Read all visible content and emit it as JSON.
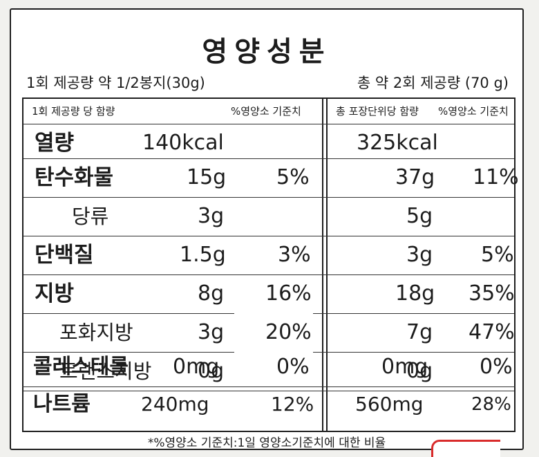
{
  "title": "영양성분",
  "serving_size": "1회 제공량 약 1/2봉지(30g)",
  "total_servings": "총 약 2회 제공량 (70 g)",
  "headers": {
    "per_serving": "1회 제공량 당 함량",
    "dv_serving": "%영양소 기준치",
    "per_package": "총 포장단위당 함량",
    "dv_package": "%영양소 기준치"
  },
  "rows": [
    {
      "label": "열량",
      "serving": "140kcal",
      "serving_dv": "",
      "package": "325kcal",
      "package_dv": ""
    },
    {
      "label": "탄수화물",
      "serving": "15g",
      "serving_dv": "5%",
      "package": "37g",
      "package_dv": "11%"
    },
    {
      "label": "당류",
      "serving": "3g",
      "serving_dv": "",
      "package": "5g",
      "package_dv": ""
    },
    {
      "label": "단백질",
      "serving": "1.5g",
      "serving_dv": "3%",
      "package": "3g",
      "package_dv": "5%"
    },
    {
      "label": "지방",
      "serving": "8g",
      "serving_dv": "16%",
      "package": "18g",
      "package_dv": "35%"
    },
    {
      "label": "포화지방",
      "serving": "3g",
      "serving_dv": "20%",
      "package": "7g",
      "package_dv": "47%"
    },
    {
      "label": "트랜스지방",
      "serving": "0g",
      "serving_dv": "",
      "package": "0g",
      "package_dv": ""
    },
    {
      "label": "콜레스테롤",
      "serving": "0mg",
      "serving_dv": "0%",
      "package": "0mg",
      "package_dv": "0%"
    },
    {
      "label": "나트륨",
      "serving": "240mg",
      "serving_dv": "12%",
      "package": "560mg",
      "package_dv": "28%"
    }
  ],
  "footnote": "*%영양소 기준치:1일 영양소기준치에 대한 비율"
}
